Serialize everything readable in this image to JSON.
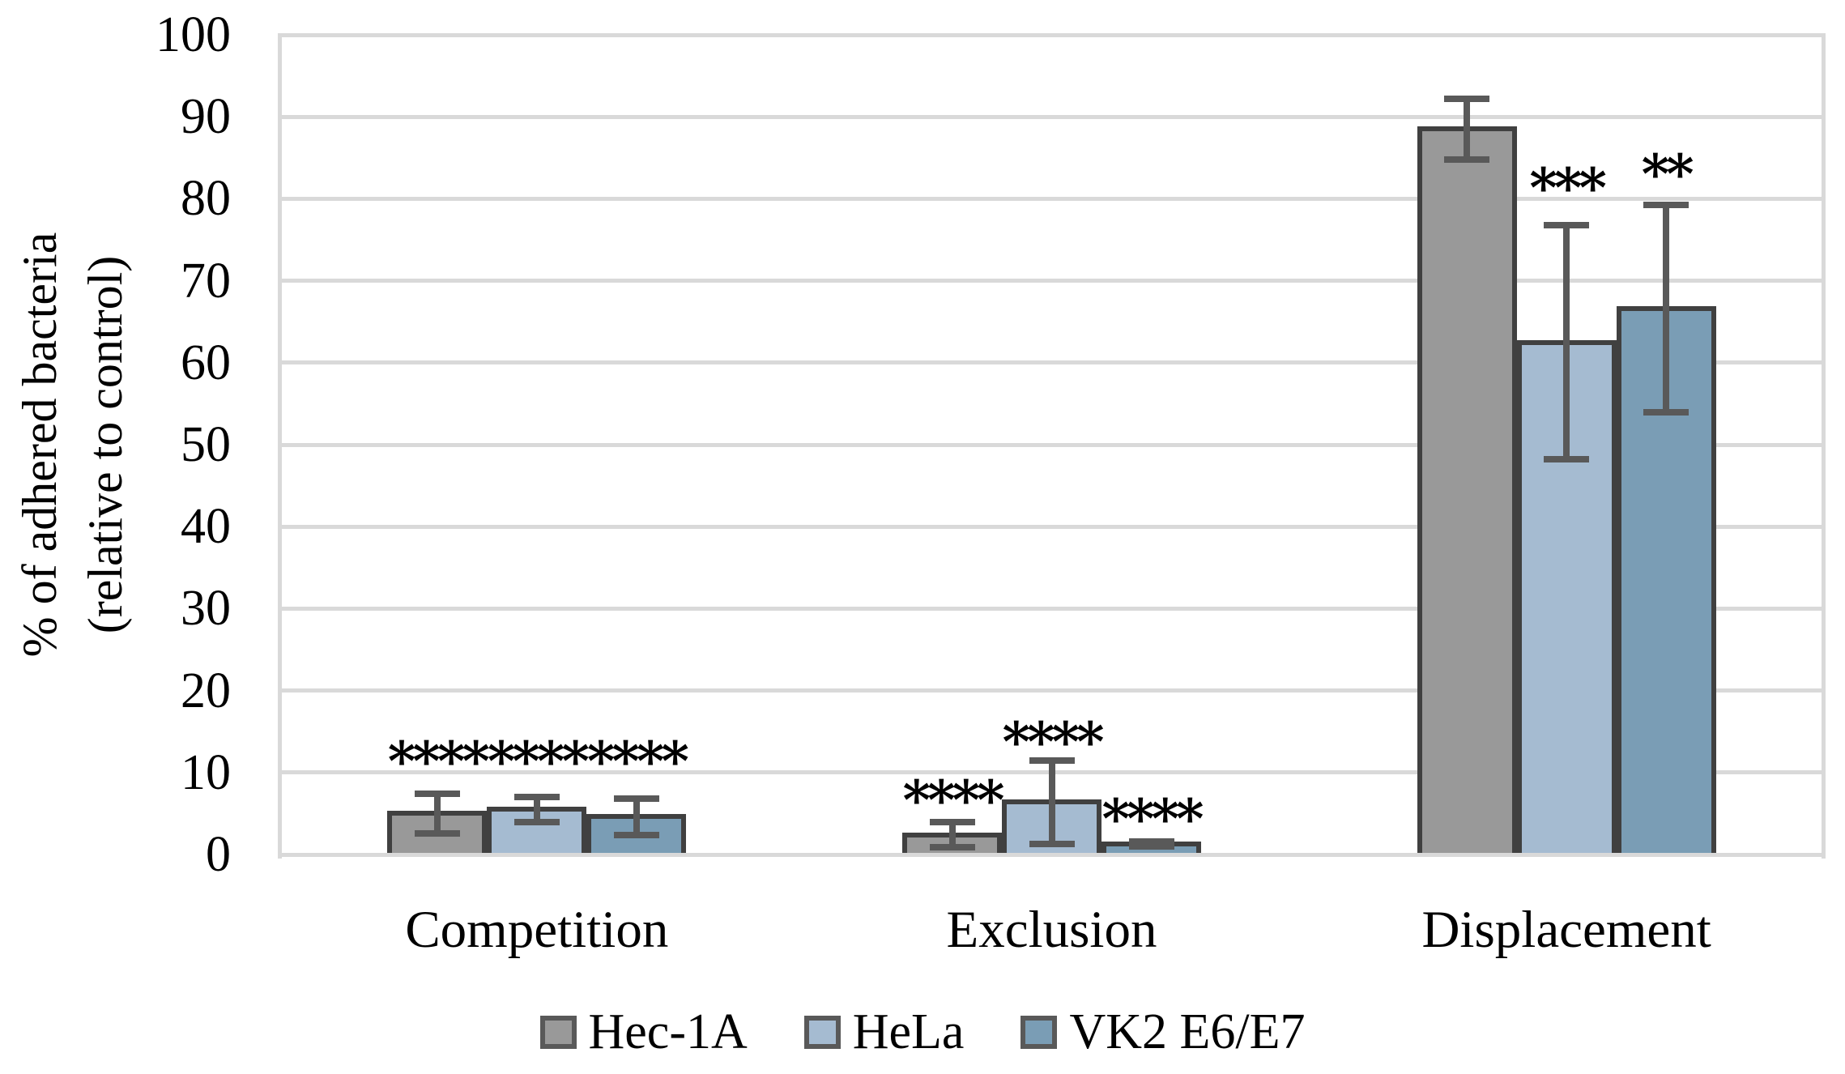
{
  "chart_data": {
    "type": "bar",
    "title": "",
    "y_axis": {
      "label_line1": "% of adhered bacteria",
      "label_line2": "(relative to control)",
      "min": 0,
      "max": 100,
      "step": 10,
      "tick_labels": [
        "0",
        "10",
        "20",
        "30",
        "40",
        "50",
        "60",
        "70",
        "80",
        "90",
        "100"
      ]
    },
    "categories": [
      "Competition",
      "Exclusion",
      "Displacement"
    ],
    "series": [
      {
        "name": "Hec-1A",
        "color": "#999999",
        "values": [
          5.0,
          2.4,
          88.5
        ],
        "errors": [
          2.8,
          1.9,
          4.1
        ],
        "sig": [
          "****",
          "****",
          ""
        ],
        "sig_y": [
          12.3,
          7.5,
          null
        ]
      },
      {
        "name": "HeLa",
        "color": "#A5BBD1",
        "values": [
          5.5,
          6.4,
          62.5
        ],
        "errors": [
          1.9,
          5.5,
          14.7
        ],
        "sig": [
          "****",
          "****",
          "***"
        ],
        "sig_y": [
          12.3,
          14.6,
          82.2
        ]
      },
      {
        "name": "VK2 E6/E7",
        "color": "#7A9DB5",
        "values": [
          4.6,
          1.3,
          66.6
        ],
        "errors": [
          2.6,
          0.7,
          13.0
        ],
        "sig": [
          "****",
          "****",
          "**"
        ],
        "sig_y": [
          12.3,
          5.2,
          83.9
        ]
      }
    ],
    "style_colors": {
      "bar_border": "#404040",
      "error_bar": "#595959",
      "gridline": "#D9D9D9",
      "text": "#000000"
    },
    "grid": "horizontal",
    "legend_position": "bottom"
  }
}
